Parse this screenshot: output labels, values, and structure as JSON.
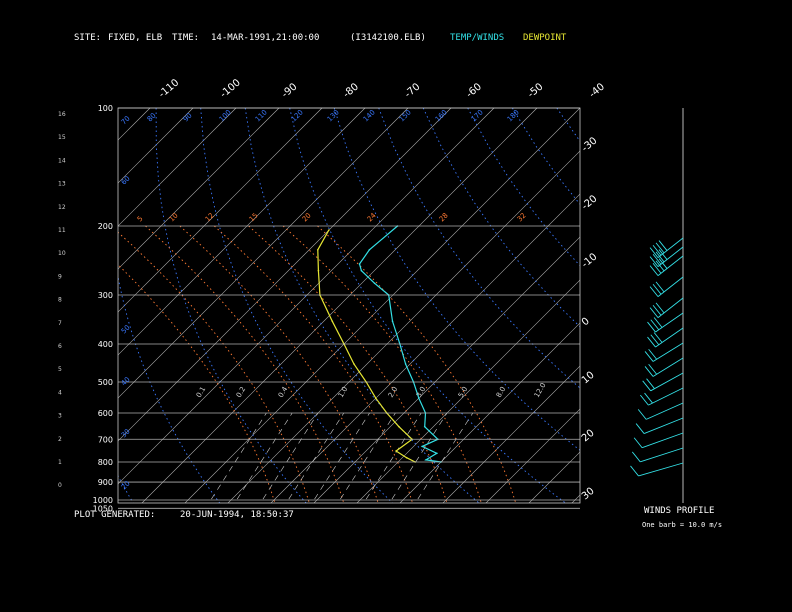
{
  "header": {
    "site_label": "SITE:",
    "site_value": "FIXED, ELB",
    "time_label": "TIME:",
    "time_value": "14-MAR-1991,21:00:00",
    "file": "(I3142100.ELB)",
    "temp_winds_legend": "TEMP/WINDS",
    "dewpoint_legend": "DEWPOINT"
  },
  "footer": {
    "generated_label": "PLOT GENERATED:",
    "generated_value": "20-JUN-1994, 18:50:37"
  },
  "winds": {
    "title": "WINDS PROFILE",
    "note": "One barb = 10.0 m/s"
  },
  "colors": {
    "temperature": "#33e0e6",
    "dewpoint": "#e6e633",
    "isobar": "#b0b0b0",
    "isotherm": "#b0b0b0",
    "dry_adiabat": "#3a78ff",
    "moist_adiabat": "#ff7a33",
    "mixing_ratio": "#cfcfcf"
  },
  "chart_data": {
    "type": "line",
    "pressure_levels_hPa": [
      "100",
      "200",
      "300",
      "400",
      "500",
      "600",
      "700",
      "800",
      "900",
      "1000",
      "1050"
    ],
    "pressure_values": [
      100,
      200,
      300,
      400,
      500,
      600,
      700,
      800,
      900,
      1000,
      1050
    ],
    "height_ticks_km": [
      "16",
      "15",
      "14",
      "13",
      "12",
      "11",
      "10",
      "9",
      "8",
      "7",
      "6",
      "5",
      "4",
      "3",
      "2",
      "1",
      "0"
    ],
    "top_temperature_labels": [
      "-110",
      "-100",
      "-90",
      "-80",
      "-70",
      "-60",
      "-50",
      "-40"
    ],
    "top_temperature_values": [
      -110,
      -100,
      -90,
      -80,
      -70,
      -60,
      -50,
      -40
    ],
    "right_temperature_labels": [
      "-30",
      "-20",
      "-10",
      "0",
      "10",
      "20",
      "30"
    ],
    "right_temperature_values": [
      -30,
      -20,
      -10,
      0,
      10,
      20,
      30
    ],
    "dry_adiabat_labels": [
      "20",
      "30",
      "40",
      "50",
      "60",
      "70",
      "80",
      "90",
      "100",
      "110",
      "120",
      "130",
      "140",
      "150",
      "160",
      "170",
      "180"
    ],
    "moist_adiabat_labels": [
      "5",
      "10",
      "12",
      "15",
      "20",
      "24",
      "28",
      "32"
    ],
    "mixing_ratio_labels": [
      "0.1",
      "0.2",
      "0.4",
      "1.0",
      "2.0",
      "3.0",
      "5.0",
      "8.0",
      "12.0"
    ],
    "series": [
      {
        "name": "TEMP/WINDS",
        "points": [
          {
            "p": 800,
            "t": 10
          },
          {
            "p": 790,
            "t": 6
          },
          {
            "p": 760,
            "t": 7
          },
          {
            "p": 730,
            "t": 2
          },
          {
            "p": 700,
            "t": 4
          },
          {
            "p": 650,
            "t": -2
          },
          {
            "p": 600,
            "t": -5
          },
          {
            "p": 550,
            "t": -10
          },
          {
            "p": 500,
            "t": -15
          },
          {
            "p": 450,
            "t": -21
          },
          {
            "p": 400,
            "t": -27
          },
          {
            "p": 350,
            "t": -34
          },
          {
            "p": 300,
            "t": -41
          },
          {
            "p": 280,
            "t": -47
          },
          {
            "p": 260,
            "t": -53
          },
          {
            "p": 250,
            "t": -55
          },
          {
            "p": 230,
            "t": -56
          },
          {
            "p": 200,
            "t": -55
          }
        ]
      },
      {
        "name": "DEWPOINT",
        "points": [
          {
            "p": 800,
            "t": 4
          },
          {
            "p": 780,
            "t": 1
          },
          {
            "p": 750,
            "t": -3
          },
          {
            "p": 700,
            "t": -2
          },
          {
            "p": 650,
            "t": -8
          },
          {
            "p": 600,
            "t": -14
          },
          {
            "p": 550,
            "t": -20
          },
          {
            "p": 500,
            "t": -26
          },
          {
            "p": 450,
            "t": -33
          },
          {
            "p": 400,
            "t": -40
          },
          {
            "p": 350,
            "t": -48
          },
          {
            "p": 300,
            "t": -57
          },
          {
            "p": 260,
            "t": -63
          },
          {
            "p": 230,
            "t": -68
          },
          {
            "p": 205,
            "t": -70
          }
        ]
      }
    ],
    "wind_profile": [
      {
        "p": 200,
        "spd": 35,
        "dir": 300
      },
      {
        "p": 230,
        "spd": 35,
        "dir": 300
      },
      {
        "p": 260,
        "spd": 35,
        "dir": 300
      },
      {
        "p": 330,
        "spd": 30,
        "dir": 300
      },
      {
        "p": 400,
        "spd": 30,
        "dir": 300
      },
      {
        "p": 450,
        "spd": 25,
        "dir": 290
      },
      {
        "p": 500,
        "spd": 25,
        "dir": 290
      },
      {
        "p": 550,
        "spd": 20,
        "dir": 280
      },
      {
        "p": 600,
        "spd": 20,
        "dir": 280
      },
      {
        "p": 650,
        "spd": 15,
        "dir": 270
      },
      {
        "p": 700,
        "spd": 15,
        "dir": 260
      },
      {
        "p": 750,
        "spd": 10,
        "dir": 250
      },
      {
        "p": 800,
        "spd": 10,
        "dir": 240
      },
      {
        "p": 850,
        "spd": 10,
        "dir": 230
      },
      {
        "p": 900,
        "spd": 10,
        "dir": 220
      },
      {
        "p": 950,
        "spd": 5,
        "dir": 210
      }
    ]
  }
}
